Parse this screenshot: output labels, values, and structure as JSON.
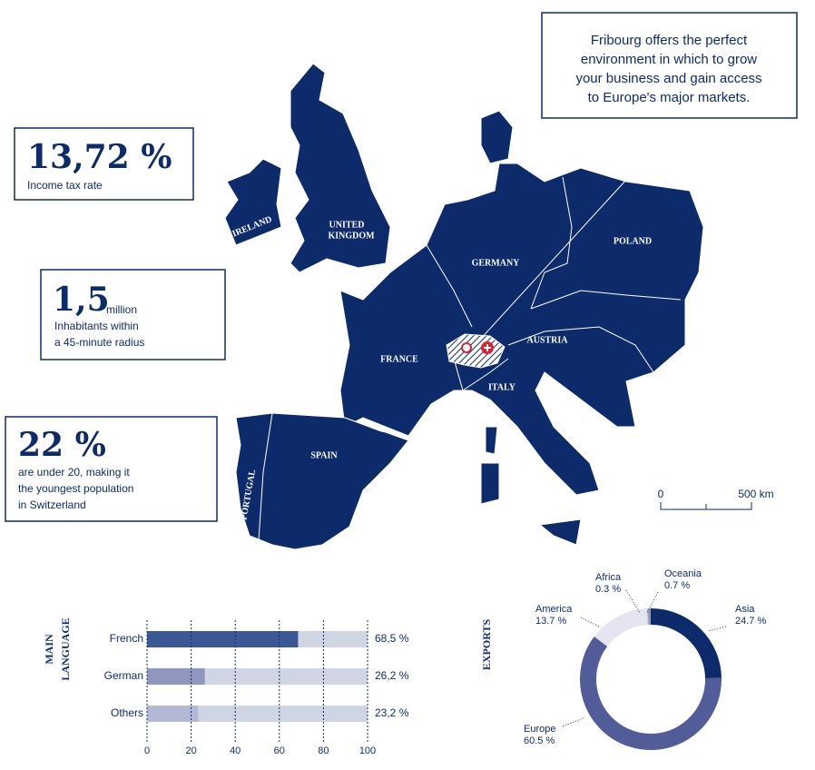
{
  "intro": [
    "Fribourg offers the perfect",
    "environment in which to grow",
    "your business and gain access",
    "to Europe's major markets."
  ],
  "stats": [
    {
      "value": "13,72 %",
      "lines": [
        "Income tax rate"
      ]
    },
    {
      "value": "1,5",
      "unit": "million",
      "lines": [
        "Inhabitants within",
        "a 45-minute radius"
      ]
    },
    {
      "value": "22 %",
      "lines": [
        "are under 20, making it",
        "the youngest population",
        "in Switzerland"
      ]
    }
  ],
  "map": {
    "labels": [
      "UNITED",
      "KINGDOM",
      "IRELAND",
      "GERMANY",
      "POLAND",
      "FRANCE",
      "AUSTRIA",
      "ITALY",
      "SPAIN",
      "PORTUGAL"
    ],
    "scale": [
      "0",
      "500 km"
    ]
  },
  "chart_data": [
    {
      "type": "bar",
      "orientation": "horizontal",
      "title": [
        "MAIN",
        "LANGUAGE"
      ],
      "categories": [
        "French",
        "German",
        "Others"
      ],
      "values": [
        68.5,
        26.2,
        23.2
      ],
      "value_labels": [
        "68,5 %",
        "26,2 %",
        "23,2 %"
      ],
      "colors": [
        "#3c5894",
        "#8f97bf",
        "#b3b8d4"
      ],
      "track_color": "#cfd5e3",
      "xlim": [
        0,
        100
      ],
      "xticks": [
        0,
        20,
        40,
        60,
        80,
        100
      ],
      "grid": true
    },
    {
      "type": "donut",
      "title": "EXPORTS",
      "categories": [
        "Asia",
        "Europe",
        "America",
        "Africa",
        "Oceania"
      ],
      "values": [
        24.7,
        60.5,
        13.7,
        0.3,
        0.7
      ],
      "value_labels": [
        "24.7 %",
        "60.5 %",
        "13.7 %",
        "0.3 %",
        "0.7 %"
      ],
      "colors": [
        "#0d2b6b",
        "#525c98",
        "#e4e5f1",
        "#c9cbe0",
        "#9a9cb5"
      ]
    }
  ]
}
